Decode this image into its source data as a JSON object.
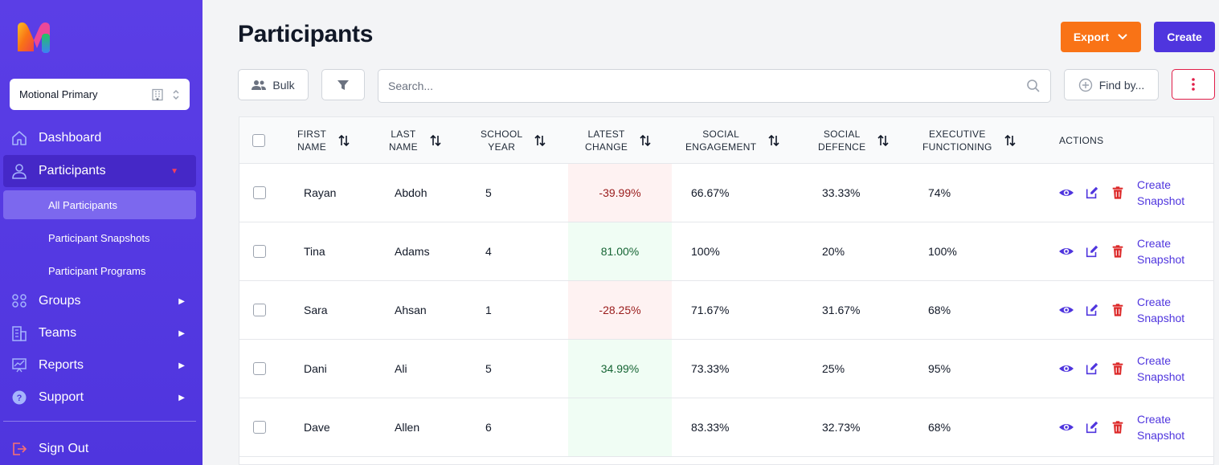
{
  "sidebar": {
    "org_select": {
      "value": "Motional Primary"
    },
    "nav": [
      {
        "label": "Dashboard",
        "icon": "home-icon"
      },
      {
        "label": "Participants",
        "icon": "user-icon"
      },
      {
        "label": "Groups",
        "icon": "users-icon"
      },
      {
        "label": "Teams",
        "icon": "building-icon"
      },
      {
        "label": "Reports",
        "icon": "chart-icon"
      },
      {
        "label": "Support",
        "icon": "help-icon"
      }
    ],
    "sub_nav": [
      {
        "label": "All Participants"
      },
      {
        "label": "Participant Snapshots"
      },
      {
        "label": "Participant Programs"
      }
    ],
    "sign_out": "Sign Out"
  },
  "header": {
    "title": "Participants",
    "export_label": "Export",
    "create_label": "Create"
  },
  "toolbar": {
    "bulk_label": "Bulk",
    "search_placeholder": "Search...",
    "find_by_label": "Find by..."
  },
  "table": {
    "columns": [
      {
        "line1": "FIRST",
        "line2": "NAME"
      },
      {
        "line1": "LAST",
        "line2": "NAME"
      },
      {
        "line1": "SCHOOL",
        "line2": "YEAR"
      },
      {
        "line1": "LATEST",
        "line2": "CHANGE"
      },
      {
        "line1": "SOCIAL",
        "line2": "ENGAGEMENT"
      },
      {
        "line1": "SOCIAL",
        "line2": "DEFENCE"
      },
      {
        "line1": "EXECUTIVE",
        "line2": "FUNCTIONING"
      },
      {
        "line1": "ACTIONS",
        "line2": ""
      }
    ],
    "action_link": {
      "line1": "Create",
      "line2": "Snapshot"
    },
    "rows": [
      {
        "first": "Rayan",
        "last": "Abdoh",
        "year": "5",
        "change": "-39.99%",
        "change_dir": "neg",
        "engagement": "66.67%",
        "defence": "33.33%",
        "executive": "74%"
      },
      {
        "first": "Tina",
        "last": "Adams",
        "year": "4",
        "change": "81.00%",
        "change_dir": "pos",
        "engagement": "100%",
        "defence": "20%",
        "executive": "100%"
      },
      {
        "first": "Sara",
        "last": "Ahsan",
        "year": "1",
        "change": "-28.25%",
        "change_dir": "neg",
        "engagement": "71.67%",
        "defence": "31.67%",
        "executive": "68%"
      },
      {
        "first": "Dani",
        "last": "Ali",
        "year": "5",
        "change": "34.99%",
        "change_dir": "pos",
        "engagement": "73.33%",
        "defence": "25%",
        "executive": "95%"
      },
      {
        "first": "Dave",
        "last": "Allen",
        "year": "6",
        "change": "",
        "change_dir": "none",
        "engagement": "83.33%",
        "defence": "32.73%",
        "executive": "68%"
      }
    ]
  },
  "colors": {
    "sidebar": "#5b3ee6",
    "accent": "#4f35de",
    "export": "#f97316",
    "danger": "#dc2626"
  }
}
